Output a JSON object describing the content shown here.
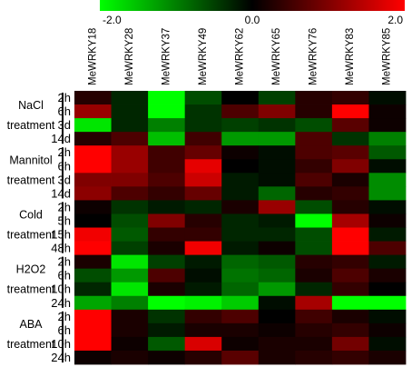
{
  "chart_data": {
    "type": "heatmap",
    "colorbar": {
      "ticks": [
        {
          "value": -2.0,
          "label": "-2.0"
        },
        {
          "value": 0.0,
          "label": "0.0"
        },
        {
          "value": 2.0,
          "label": "2.0"
        }
      ],
      "low_color": "#00ff00",
      "mid_color": "#000000",
      "high_color": "#ff0000",
      "range": [
        -2.0,
        2.0
      ]
    },
    "columns": [
      "MeWRKY18",
      "MeWRKY28",
      "MeWRKY37",
      "MeWRKY49",
      "MeWRKY62",
      "MeWRKY65",
      "MeWRKY76",
      "MeWRKY83",
      "MeWRKY85"
    ],
    "groups": [
      {
        "label_lines": [
          "NaCl",
          "treatment"
        ],
        "rows": [
          "2h",
          "6h",
          "3d",
          "14d"
        ]
      },
      {
        "label_lines": [
          "Mannitol",
          "treatment"
        ],
        "rows": [
          "2h",
          "6h",
          "3d",
          "14d"
        ]
      },
      {
        "label_lines": [
          "Cold",
          "treatment"
        ],
        "rows": [
          "2h",
          "5h",
          "15h",
          "48h"
        ]
      },
      {
        "label_lines": [
          "H2O2",
          "treatment"
        ],
        "rows": [
          "2h",
          "6h",
          "10h",
          "24h"
        ]
      },
      {
        "label_lines": [
          "ABA",
          "treatment"
        ],
        "rows": [
          "2h",
          "6h",
          "10h",
          "24h"
        ]
      }
    ],
    "values": [
      [
        0.3,
        -0.3,
        -2.0,
        -0.6,
        0.0,
        -0.5,
        0.3,
        0.4,
        -0.1
      ],
      [
        1.2,
        -0.3,
        -2.0,
        -0.4,
        0.6,
        1.0,
        0.3,
        2.0,
        0.1
      ],
      [
        -1.8,
        -0.3,
        -1.0,
        -0.4,
        -0.5,
        -0.4,
        -0.6,
        0.7,
        0.1
      ],
      [
        0.3,
        0.6,
        -1.5,
        0.5,
        -1.2,
        -1.2,
        0.6,
        -0.4,
        -1.0
      ],
      [
        2.0,
        1.2,
        0.5,
        0.8,
        0.1,
        -0.1,
        0.6,
        0.7,
        -0.7
      ],
      [
        2.0,
        1.2,
        0.5,
        1.8,
        0.0,
        -0.1,
        0.4,
        1.0,
        -0.1
      ],
      [
        1.0,
        1.0,
        0.6,
        1.6,
        -0.2,
        -0.1,
        0.6,
        0.2,
        -1.1
      ],
      [
        1.1,
        0.6,
        0.4,
        0.8,
        -0.2,
        -0.8,
        0.3,
        0.4,
        -1.1
      ],
      [
        0.1,
        -0.4,
        -0.2,
        -0.3,
        0.2,
        1.2,
        -0.6,
        0.3,
        -0.1
      ],
      [
        0.0,
        -0.6,
        1.0,
        0.3,
        -0.3,
        -0.2,
        -2.0,
        1.3,
        0.1
      ],
      [
        1.9,
        -0.7,
        0.4,
        0.4,
        -0.3,
        -0.3,
        -0.6,
        2.0,
        -0.2
      ],
      [
        2.0,
        -0.5,
        0.2,
        1.9,
        -0.2,
        0.1,
        -0.6,
        2.0,
        0.6
      ],
      [
        0.2,
        -1.8,
        -0.5,
        -0.2,
        -0.8,
        -0.7,
        0.3,
        0.4,
        -0.2
      ],
      [
        -0.6,
        -1.2,
        0.6,
        -0.1,
        -0.9,
        -0.8,
        0.2,
        0.6,
        0.2
      ],
      [
        -0.3,
        -1.8,
        0.2,
        -0.2,
        -0.8,
        -1.2,
        -0.3,
        0.4,
        0.0
      ],
      [
        -1.3,
        -1.0,
        -2.0,
        -1.9,
        -1.6,
        -0.1,
        1.3,
        -2.0,
        -2.0
      ],
      [
        2.0,
        0.2,
        -0.4,
        0.4,
        0.6,
        0.0,
        0.5,
        0.2,
        -0.1
      ],
      [
        2.0,
        0.2,
        -0.2,
        0.2,
        0.2,
        0.1,
        0.3,
        0.4,
        0.1
      ],
      [
        2.0,
        0.1,
        -0.7,
        1.7,
        0.1,
        0.2,
        0.2,
        0.9,
        -0.1
      ],
      [
        0.1,
        0.2,
        0.1,
        0.3,
        0.7,
        0.2,
        0.3,
        0.4,
        0.2
      ]
    ]
  }
}
